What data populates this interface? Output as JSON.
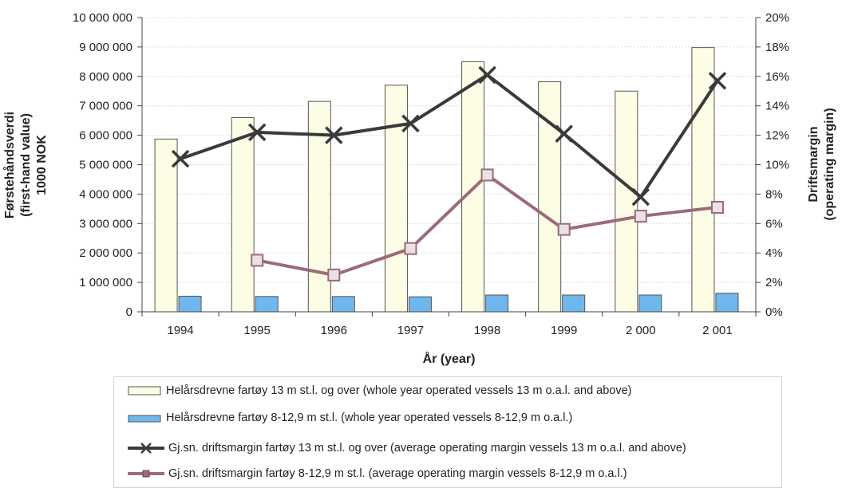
{
  "chart_data": {
    "type": "bar+line",
    "categories": [
      "1994",
      "1995",
      "1996",
      "1997",
      "1998",
      "1999",
      "2 000",
      "2 001"
    ],
    "y_left": {
      "label_lines": [
        "Førstehåndsverdi",
        "(first-hand value)",
        "1000 NOK"
      ],
      "range": [
        0,
        10000000
      ],
      "ticks": [
        "0",
        "1 000 000",
        "2 000 000",
        "3 000 000",
        "4 000 000",
        "5 000 000",
        "6 000 000",
        "7 000 000",
        "8 000 000",
        "9 000 000",
        "10 000 000"
      ]
    },
    "y_right": {
      "label_lines": [
        "Driftsmargin",
        "(operating margin)"
      ],
      "range": [
        0,
        20
      ],
      "ticks": [
        "0%",
        "2%",
        "4%",
        "6%",
        "8%",
        "10%",
        "12%",
        "14%",
        "16%",
        "18%",
        "20%"
      ]
    },
    "xlabel": "År (year)",
    "grid": true,
    "legend_position": "bottom",
    "series": [
      {
        "name": "Helårsdrevne fartøy 13 m st.l. og over (whole year operated vessels 13 m o.a.l. and above)",
        "type": "bar",
        "axis": "left",
        "color": "#fdfde6",
        "values": [
          5870000,
          6600000,
          7150000,
          7700000,
          8500000,
          7820000,
          7500000,
          8980000
        ]
      },
      {
        "name": "Helårsdrevne fartøy 8-12,9 m st.l. (whole year operated vessels 8-12,9 m o.a.l.)",
        "type": "bar",
        "axis": "left",
        "color": "#6fb7ec",
        "values": [
          530000,
          520000,
          520000,
          510000,
          570000,
          570000,
          570000,
          630000
        ]
      },
      {
        "name": "Gj.sn. driftsmargin fartøy 13 m st.l. og over (average operating margin vessels 13 m o.a.l. and above)",
        "type": "line",
        "axis": "right",
        "color": "#3a3a3a",
        "marker": "x",
        "values": [
          10.4,
          12.2,
          12.0,
          12.8,
          16.1,
          12.1,
          7.8,
          15.7
        ]
      },
      {
        "name": "Gj.sn. driftsmargin fartøy 8-12,9 m st.l. (average operating margin vessels 8-12,9 m o.a.l.)",
        "type": "line",
        "axis": "right",
        "color": "#9c6a78",
        "marker": "square",
        "values": [
          null,
          3.5,
          2.5,
          4.3,
          9.3,
          5.6,
          6.5,
          7.1
        ]
      }
    ]
  }
}
